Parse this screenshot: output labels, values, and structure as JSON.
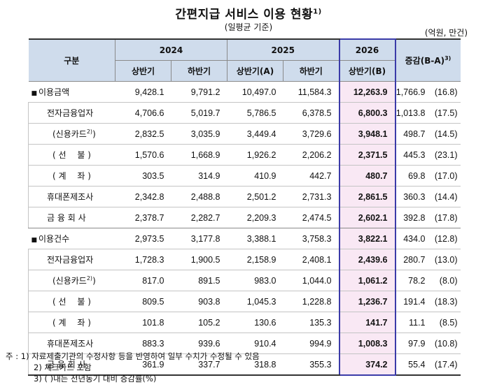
{
  "title": "간편지급 서비스 이용 현황",
  "title_sup": "1)",
  "subtitle": "(일평균 기준)",
  "unit": "(억원, 만건)",
  "header": {
    "category": "구분",
    "y2024": "2024",
    "y2025": "2025",
    "y2026": "2026",
    "diff": "증감(B-A)",
    "diff_sup": "3)",
    "h1": "상반기",
    "h2": "하반기",
    "h1a": "상반기(A)",
    "h2b": "하반기",
    "h1b": "상반기(B)"
  },
  "rows": [
    {
      "bullet": "■",
      "label": "이용금액",
      "sup": "",
      "v": [
        "9,428.1",
        "9,791.2",
        "10,497.0",
        "11,584.3",
        "12,263.9"
      ],
      "diff": "1,766.9",
      "pct": "(16.8)"
    },
    {
      "bullet": "",
      "label": "전자금융업자",
      "sup": "",
      "v": [
        "4,706.6",
        "5,019.7",
        "5,786.5",
        "6,378.5",
        "6,800.3"
      ],
      "diff": "1,013.8",
      "pct": "(17.5)"
    },
    {
      "bullet": "",
      "label": "(신용카드",
      "sup": "2)",
      "label_end": ")",
      "v": [
        "2,832.5",
        "3,035.9",
        "3,449.4",
        "3,729.6",
        "3,948.1"
      ],
      "diff": "498.7",
      "pct": "(14.5)"
    },
    {
      "bullet": "",
      "label": "( 선　 불 )",
      "sup": "",
      "v": [
        "1,570.6",
        "1,668.9",
        "1,926.2",
        "2,206.2",
        "2,371.5"
      ],
      "diff": "445.3",
      "pct": "(23.1)"
    },
    {
      "bullet": "",
      "label": "( 계　 좌 )",
      "sup": "",
      "v": [
        "303.5",
        "314.9",
        "410.9",
        "442.7",
        "480.7"
      ],
      "diff": "69.8",
      "pct": "(17.0)"
    },
    {
      "bullet": "",
      "label": "휴대폰제조사",
      "sup": "",
      "v": [
        "2,342.8",
        "2,488.8",
        "2,501.2",
        "2,731.3",
        "2,861.5"
      ],
      "diff": "360.3",
      "pct": "(14.4)"
    },
    {
      "bullet": "",
      "label": "금 융 회 사",
      "sup": "",
      "v": [
        "2,378.7",
        "2,282.7",
        "2,209.3",
        "2,474.5",
        "2,602.1"
      ],
      "diff": "392.8",
      "pct": "(17.8)"
    },
    {
      "bullet": "■",
      "label": "이용건수",
      "sup": "",
      "v": [
        "2,973.5",
        "3,177.8",
        "3,388.1",
        "3,758.3",
        "3,822.1"
      ],
      "diff": "434.0",
      "pct": "(12.8)"
    },
    {
      "bullet": "",
      "label": "전자금융업자",
      "sup": "",
      "v": [
        "1,728.3",
        "1,900.5",
        "2,158.9",
        "2,408.1",
        "2,439.6"
      ],
      "diff": "280.7",
      "pct": "(13.0)"
    },
    {
      "bullet": "",
      "label": "(신용카드",
      "sup": "2)",
      "label_end": ")",
      "v": [
        "817.0",
        "891.5",
        "983.0",
        "1,044.0",
        "1,061.2"
      ],
      "diff": "78.2",
      "pct": "(8.0)"
    },
    {
      "bullet": "",
      "label": "( 선　 불 )",
      "sup": "",
      "v": [
        "809.5",
        "903.8",
        "1,045.3",
        "1,228.8",
        "1,236.7"
      ],
      "diff": "191.4",
      "pct": "(18.3)"
    },
    {
      "bullet": "",
      "label": "( 계　 좌 )",
      "sup": "",
      "v": [
        "101.8",
        "105.2",
        "130.6",
        "135.3",
        "141.7"
      ],
      "diff": "11.1",
      "pct": "(8.5)"
    },
    {
      "bullet": "",
      "label": "휴대폰제조사",
      "sup": "",
      "v": [
        "883.3",
        "939.6",
        "910.4",
        "994.9",
        "1,008.3"
      ],
      "diff": "97.9",
      "pct": "(10.8)"
    },
    {
      "bullet": "",
      "label": "금 융 회 사",
      "sup": "",
      "v": [
        "361.9",
        "337.7",
        "318.8",
        "355.3",
        "374.2"
      ],
      "diff": "55.4",
      "pct": "(17.4)"
    }
  ],
  "notes": [
    "주 : 1) 자료제출기관의 수정사항 등을 반영하여 일부 수치가 수정될 수 있음",
    "2) 체크카드 포함",
    "3) ( )내는 전년동기 대비 증감률(%)"
  ]
}
